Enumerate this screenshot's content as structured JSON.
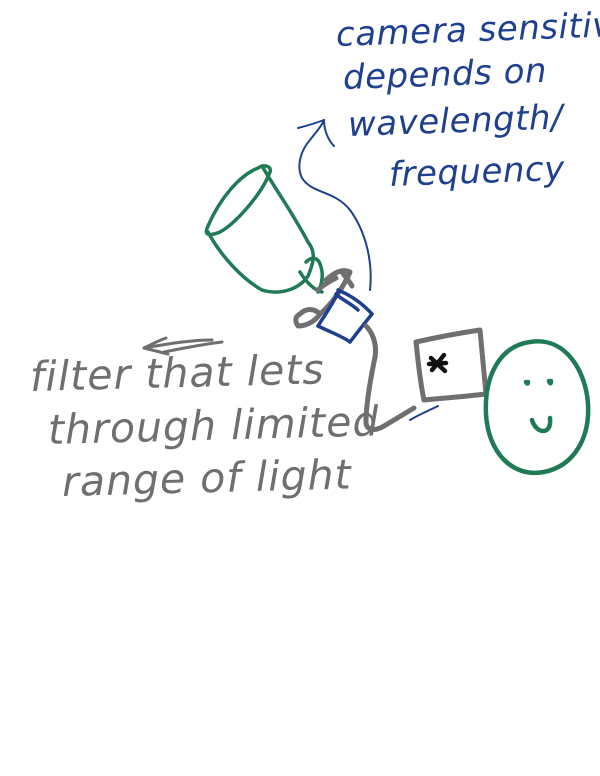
{
  "annotations": {
    "camera_note": [
      "camera sensitivity",
      "depends on",
      "wavelength/",
      "frequency"
    ],
    "filter_note": [
      "filter that lets",
      "through limited",
      "range of light"
    ]
  },
  "colors": {
    "blue_ink": "#1f3f8f",
    "green_ink": "#1f7a55",
    "gray_ink": "#6f6f6f",
    "black_ink": "#111111",
    "background": "#ffffff"
  },
  "icons": {
    "camera": "camera-sketch-icon",
    "filter": "filter-sketch-icon",
    "screen": "screen-sketch-icon",
    "face": "smiley-face-icon",
    "star": "star-mark-icon",
    "arrow": "arrow-icon"
  }
}
